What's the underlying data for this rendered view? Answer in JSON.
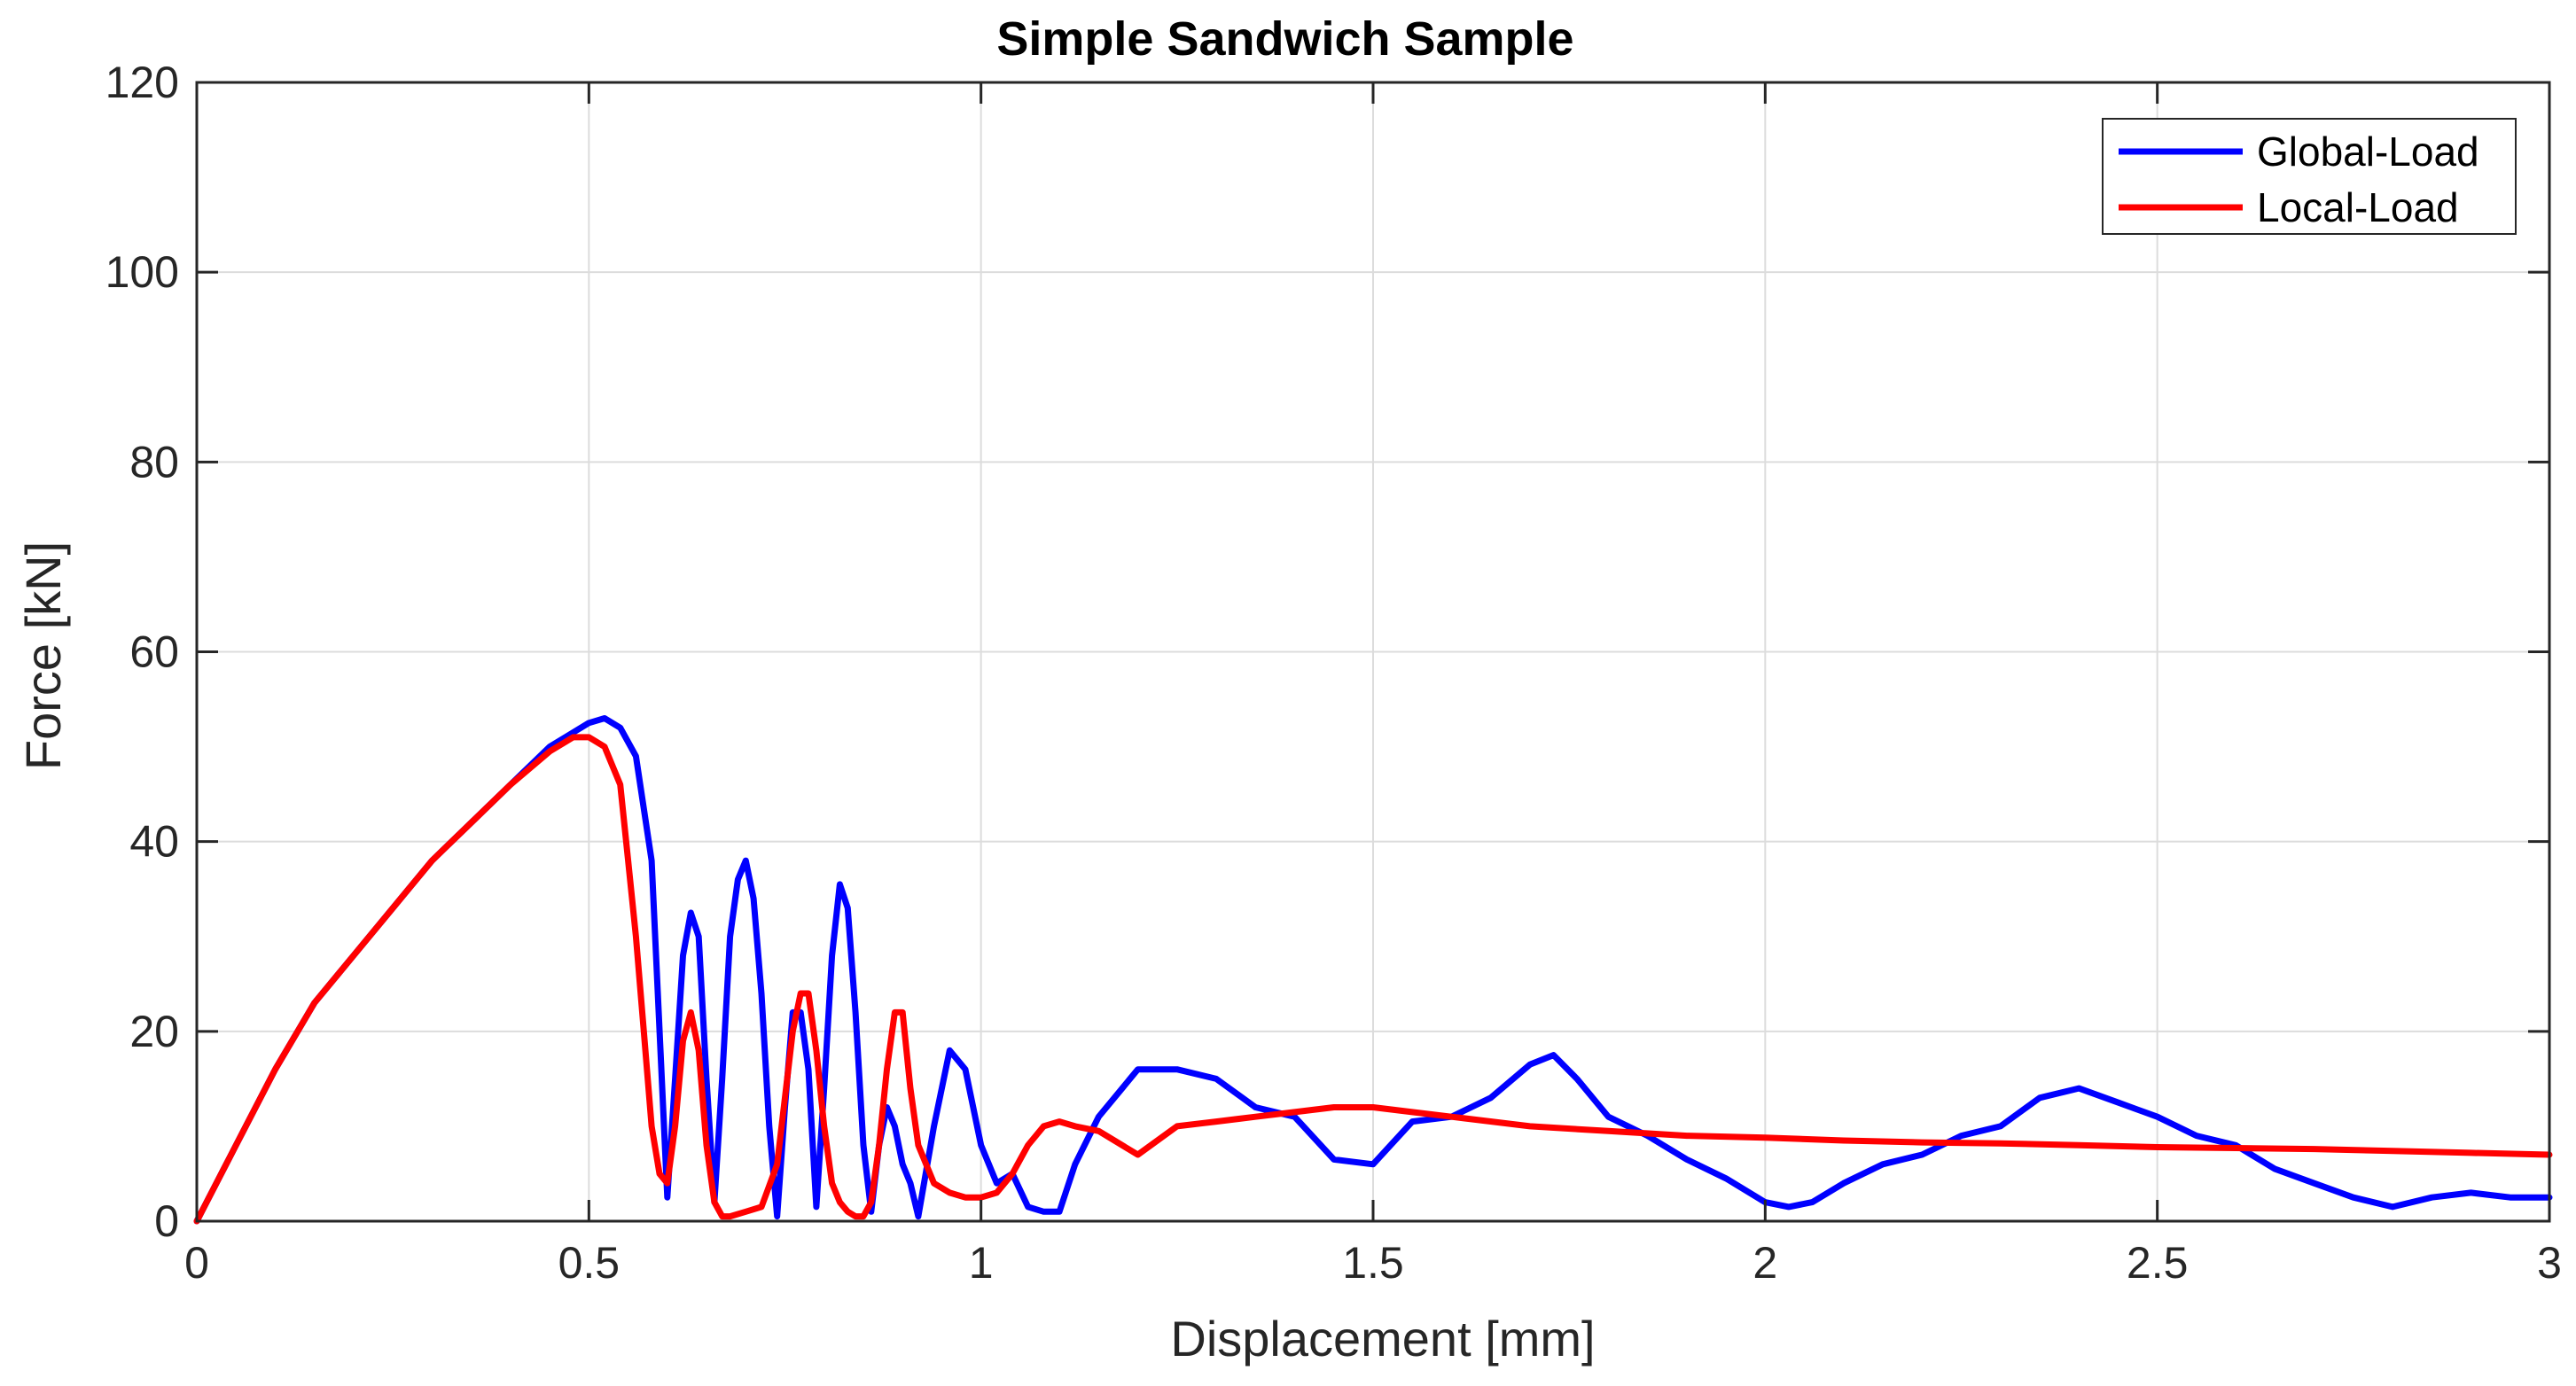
{
  "chart_data": {
    "type": "line",
    "title": "Simple Sandwich Sample",
    "xlabel": "Displacement [mm]",
    "ylabel": "Force [kN]",
    "xlim": [
      0,
      3
    ],
    "ylim": [
      0,
      120
    ],
    "grid": true,
    "legend_position": "top-right",
    "xticks": [
      0,
      0.5,
      1,
      1.5,
      2,
      2.5,
      3
    ],
    "xtick_labels": [
      "0",
      "0.5",
      "1",
      "1.5",
      "2",
      "2.5",
      "3"
    ],
    "yticks": [
      0,
      20,
      40,
      60,
      80,
      100,
      120
    ],
    "ytick_labels": [
      "0",
      "20",
      "40",
      "60",
      "80",
      "100",
      "120"
    ],
    "series": [
      {
        "name": "Global-Load",
        "color": "#0000ff",
        "x": [
          0,
          0.05,
          0.1,
          0.15,
          0.2,
          0.25,
          0.3,
          0.35,
          0.4,
          0.45,
          0.5,
          0.52,
          0.54,
          0.56,
          0.58,
          0.6,
          0.61,
          0.62,
          0.63,
          0.64,
          0.65,
          0.66,
          0.67,
          0.68,
          0.69,
          0.7,
          0.71,
          0.72,
          0.73,
          0.74,
          0.75,
          0.76,
          0.77,
          0.78,
          0.79,
          0.8,
          0.81,
          0.82,
          0.83,
          0.84,
          0.85,
          0.86,
          0.87,
          0.88,
          0.89,
          0.9,
          0.91,
          0.92,
          0.94,
          0.96,
          0.98,
          1.0,
          1.02,
          1.04,
          1.06,
          1.08,
          1.1,
          1.12,
          1.15,
          1.2,
          1.25,
          1.3,
          1.35,
          1.4,
          1.45,
          1.5,
          1.55,
          1.6,
          1.65,
          1.7,
          1.73,
          1.76,
          1.8,
          1.85,
          1.9,
          1.95,
          2.0,
          2.03,
          2.06,
          2.1,
          2.15,
          2.2,
          2.25,
          2.3,
          2.35,
          2.4,
          2.45,
          2.5,
          2.55,
          2.6,
          2.65,
          2.7,
          2.75,
          2.8,
          2.85,
          2.9,
          2.95,
          3.0
        ],
        "y": [
          0,
          8,
          16,
          23,
          28,
          33,
          38,
          42,
          46,
          50,
          52.5,
          53,
          52,
          49,
          38,
          2.5,
          15,
          28,
          32.5,
          30,
          15,
          2,
          15,
          30,
          36,
          38,
          34,
          24,
          10,
          0.5,
          12,
          22,
          22,
          16,
          1.5,
          14,
          28,
          35.5,
          33,
          22,
          8,
          1,
          8,
          12,
          10,
          6,
          4,
          0.5,
          10,
          18,
          16,
          8,
          4,
          5,
          1.5,
          1,
          1,
          6,
          11,
          16,
          16,
          15,
          12,
          11,
          6.5,
          6,
          10.5,
          11,
          13,
          16.5,
          17.5,
          15,
          11,
          9,
          6.5,
          4.5,
          2,
          1.5,
          2,
          4,
          6,
          7,
          9,
          10,
          13,
          14,
          12.5,
          11,
          9,
          8,
          5.5,
          4,
          2.5,
          1.5,
          2.5,
          3,
          2.5,
          2.5
        ]
      },
      {
        "name": "Local-Load",
        "color": "#ff0000",
        "x": [
          0,
          0.05,
          0.1,
          0.15,
          0.2,
          0.25,
          0.3,
          0.35,
          0.4,
          0.45,
          0.48,
          0.5,
          0.52,
          0.54,
          0.55,
          0.56,
          0.57,
          0.58,
          0.59,
          0.6,
          0.61,
          0.62,
          0.63,
          0.64,
          0.65,
          0.66,
          0.67,
          0.68,
          0.7,
          0.72,
          0.74,
          0.76,
          0.77,
          0.78,
          0.79,
          0.8,
          0.81,
          0.82,
          0.83,
          0.84,
          0.85,
          0.86,
          0.87,
          0.88,
          0.89,
          0.9,
          0.91,
          0.92,
          0.94,
          0.96,
          0.98,
          1.0,
          1.02,
          1.04,
          1.06,
          1.08,
          1.1,
          1.12,
          1.15,
          1.2,
          1.25,
          1.3,
          1.35,
          1.4,
          1.45,
          1.5,
          1.55,
          1.6,
          1.7,
          1.8,
          1.9,
          2.0,
          2.1,
          2.2,
          2.3,
          2.4,
          2.5,
          2.6,
          2.7,
          2.8,
          2.9,
          3.0
        ],
        "y": [
          0,
          8,
          16,
          23,
          28,
          33,
          38,
          42,
          46,
          49.5,
          51,
          51,
          50,
          46,
          38,
          30,
          20,
          10,
          5,
          4,
          10,
          19,
          22,
          18,
          8,
          2,
          0.5,
          0.5,
          1,
          1.5,
          6,
          20,
          24,
          24,
          18,
          10,
          4,
          2,
          1,
          0.5,
          0.5,
          2,
          8,
          16,
          22,
          22,
          14,
          8,
          4,
          3,
          2.5,
          2.5,
          3,
          5,
          8,
          10,
          10.5,
          10,
          9.5,
          7,
          10,
          10.5,
          11,
          11.5,
          12,
          12,
          11.5,
          11,
          10,
          9.5,
          9,
          8.8,
          8.5,
          8.3,
          8.2,
          8,
          7.8,
          7.7,
          7.6,
          7.4,
          7.2,
          7
        ]
      }
    ]
  }
}
